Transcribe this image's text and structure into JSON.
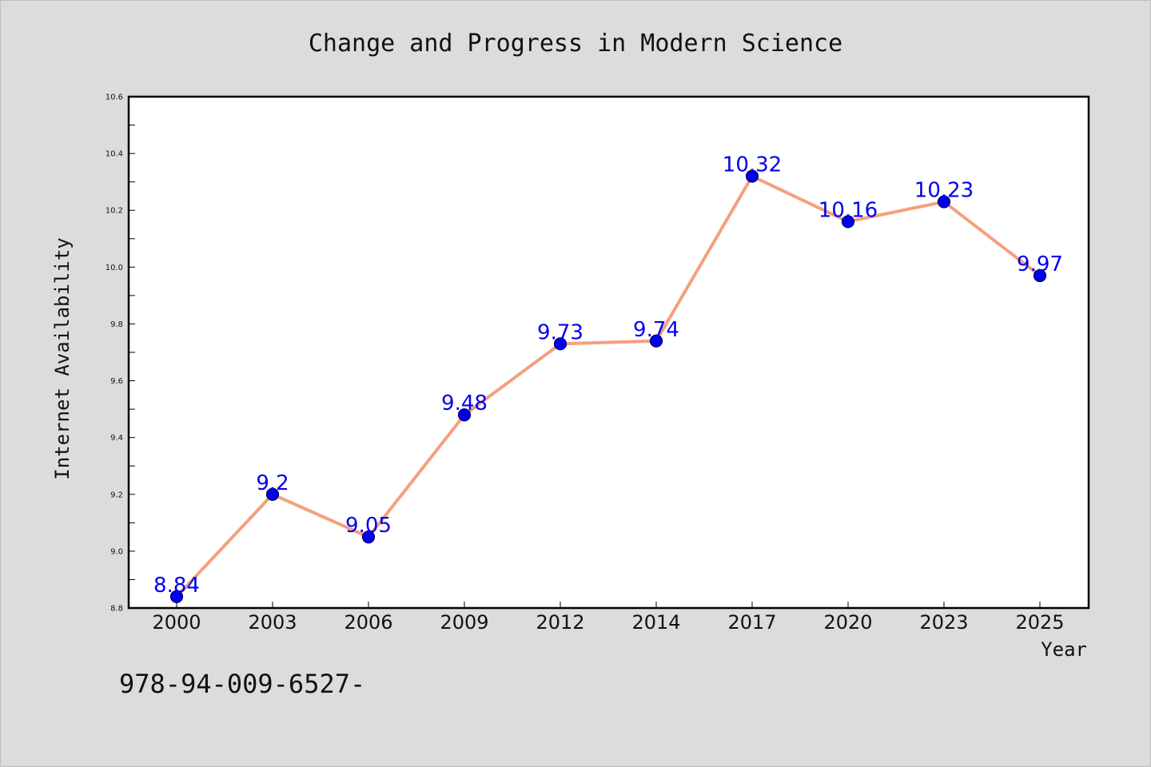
{
  "chart_data": {
    "type": "line",
    "title": "Change and Progress in Modern Science",
    "xlabel": "Year",
    "ylabel": "Internet Availability",
    "categories": [
      "2000",
      "2003",
      "2006",
      "2009",
      "2012",
      "2014",
      "2017",
      "2020",
      "2023",
      "2025"
    ],
    "series": [
      {
        "values": [
          8.84,
          9.2,
          9.05,
          9.48,
          9.73,
          9.74,
          10.32,
          10.16,
          10.23,
          9.97
        ],
        "labels": [
          "8.84",
          "9.2",
          "9.05",
          "9.48",
          "9.73",
          "9.74",
          "10.32",
          "10.16",
          "10.23",
          "9.97"
        ]
      }
    ],
    "ylim": [
      8.8,
      10.6
    ],
    "yticks": [
      "8.8",
      "9.0",
      "9.2",
      "9.4",
      "9.6",
      "9.8",
      "10.0",
      "10.2",
      "10.4",
      "10.6"
    ],
    "grid": false,
    "legend": "none",
    "colors": {
      "line": "#f4a07e",
      "marker_fill": "#0000ee",
      "marker_edge": "#000066",
      "data_label": "#0000ee",
      "plot_background": "#ffffff",
      "figure_background": "#dcdcdc"
    }
  },
  "footer": {
    "isbn": "978-94-009-6527-"
  }
}
